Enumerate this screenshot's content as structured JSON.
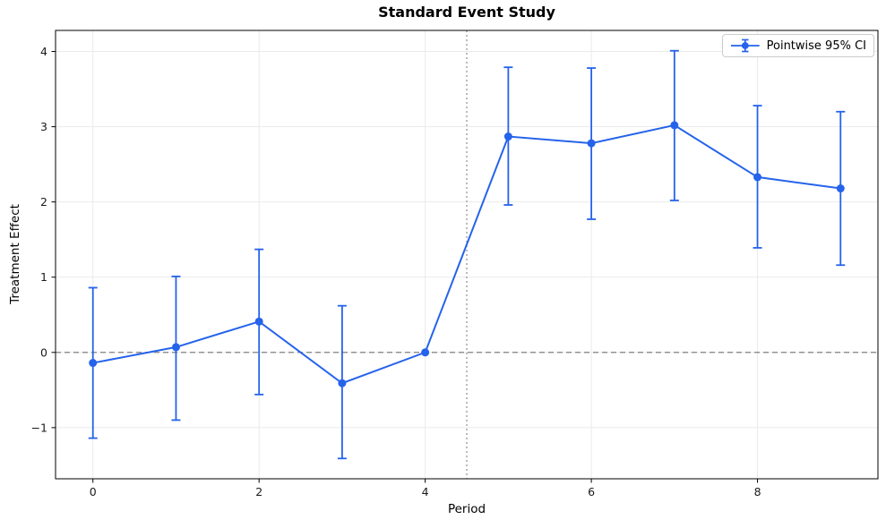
{
  "title": "Standard Event Study",
  "axes": {
    "xlabel": "Period",
    "ylabel": "Treatment Effect"
  },
  "legend": {
    "label": "Pointwise 95% CI",
    "position": "upper right",
    "icon": "errorbar-marker-icon"
  },
  "colors": {
    "series": "#2563eb",
    "zero_line": "#808080",
    "event_line": "#9e9e9e",
    "grid": "#e8e8e8",
    "spine": "#000000",
    "tick_label": "#1a1a1a",
    "legend_border": "#cccccc",
    "background": "#ffffff"
  },
  "chart_data": {
    "type": "line",
    "title": "Standard Event Study",
    "xlabel": "Period",
    "ylabel": "Treatment Effect",
    "legend_entries": [
      "Pointwise 95% CI"
    ],
    "legend_position": "upper right",
    "grid": true,
    "x": [
      0,
      1,
      2,
      3,
      4,
      5,
      6,
      7,
      8,
      9
    ],
    "series": [
      {
        "name": "Pointwise 95% CI",
        "values": [
          -0.14,
          0.07,
          0.41,
          -0.41,
          0.0,
          2.87,
          2.78,
          3.02,
          2.33,
          2.18
        ],
        "ci_lower": [
          -1.14,
          -0.9,
          -0.56,
          -1.41,
          0.0,
          1.96,
          1.77,
          2.02,
          1.39,
          1.16
        ],
        "ci_upper": [
          0.86,
          1.01,
          1.37,
          0.62,
          0.0,
          3.79,
          3.78,
          4.01,
          3.28,
          3.2
        ]
      }
    ],
    "reference_lines": [
      {
        "orientation": "horizontal",
        "value": 0,
        "style": "dashed"
      },
      {
        "orientation": "vertical",
        "value": 4.5,
        "style": "dotted"
      }
    ],
    "xticks": [
      0,
      2,
      4,
      6,
      8
    ],
    "yticks": [
      -1,
      0,
      1,
      2,
      3,
      4
    ],
    "xtick_labels": [
      "0",
      "2",
      "4",
      "6",
      "8"
    ],
    "ytick_labels": [
      "−1",
      "0",
      "1",
      "2",
      "3",
      "4"
    ],
    "xlim": [
      -0.45,
      9.45
    ],
    "ylim": [
      -1.68,
      4.28
    ]
  }
}
